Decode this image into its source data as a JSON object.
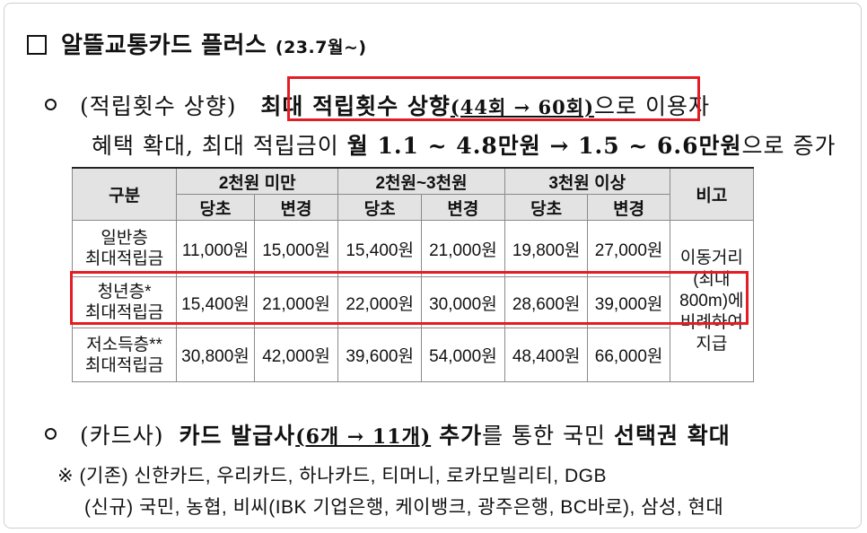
{
  "title": {
    "text": "알뜰교통카드 플러스",
    "period": "(23.7월~)"
  },
  "item1": {
    "label": "(적립횟수 상향)",
    "highlight": "최대 적립횟수 상향",
    "change": "(44회 → 60회)",
    "tail": "으로 이용자",
    "line2_start": "혜택 확대, 최대 적립금이",
    "line2_bold": "월 1.1 ~ 4.8만원 → 1.5 ~ 6.6만원",
    "line2_end": "으로 증가"
  },
  "table": {
    "header_group": "구분",
    "groups": [
      "2천원 미만",
      "2천원~3천원",
      "3천원 이상"
    ],
    "sub": [
      "당초",
      "변경",
      "당초",
      "변경",
      "당초",
      "변경"
    ],
    "note_header": "비고",
    "rows": [
      {
        "label1": "일반층",
        "label2": "최대적립금",
        "values": [
          "11,000원",
          "15,000원",
          "15,400원",
          "21,000원",
          "19,800원",
          "27,000원"
        ]
      },
      {
        "label1": "청년층*",
        "label2": "최대적립금",
        "values": [
          "15,400원",
          "21,000원",
          "22,000원",
          "30,000원",
          "28,600원",
          "39,000원"
        ]
      },
      {
        "label1": "저소득층**",
        "label2": "최대적립금",
        "values": [
          "30,800원",
          "42,000원",
          "39,600원",
          "54,000원",
          "48,400원",
          "66,000원"
        ]
      }
    ],
    "note": [
      "이동거리",
      "(최대",
      "800m)에",
      "비례하여",
      "지급"
    ]
  },
  "item2": {
    "label": "(카드사)",
    "text_a": "카드 발급사",
    "change": "(6개 → 11개)",
    "text_b": "추가",
    "text_c": "를 통한 국민",
    "text_d": "선택권 확대"
  },
  "notes": {
    "marker": "※",
    "line1": "(기존) 신한카드, 우리카드, 하나카드, 티머니, 로카모빌리티, DGB",
    "line2": "(신규) 국민, 농협, 비씨(IBK 기업은행, 케이뱅크, 광주은행, BC바로), 삼성, 현대"
  },
  "colors": {
    "highlight_box": "#e41d24",
    "table_header_bg": "#e3e3e3"
  }
}
